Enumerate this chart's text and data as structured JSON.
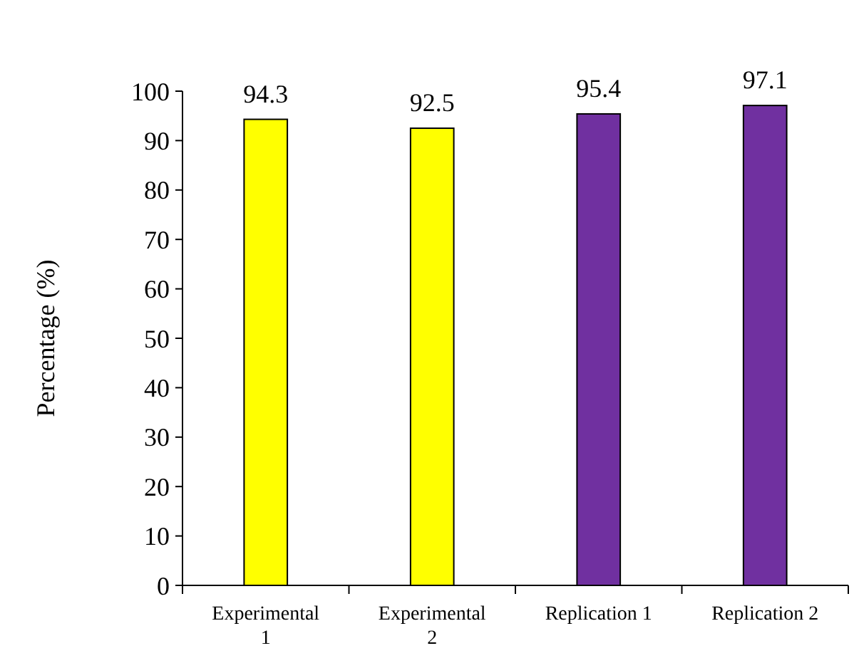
{
  "chart_data": {
    "type": "bar",
    "ylabel": "Percentage (%)",
    "categories": [
      "Experimental 1",
      "Experimental 2",
      "Replication 1",
      "Replication 2"
    ],
    "values": [
      94.3,
      92.5,
      95.4,
      97.1
    ],
    "colors": [
      "#ffff00",
      "#ffff00",
      "#7030a0",
      "#7030a0"
    ],
    "data_labels": true,
    "ylim": [
      0,
      100
    ],
    "yticks": [
      0,
      10,
      20,
      30,
      40,
      50,
      60,
      70,
      80,
      90,
      100
    ],
    "grid": false
  }
}
